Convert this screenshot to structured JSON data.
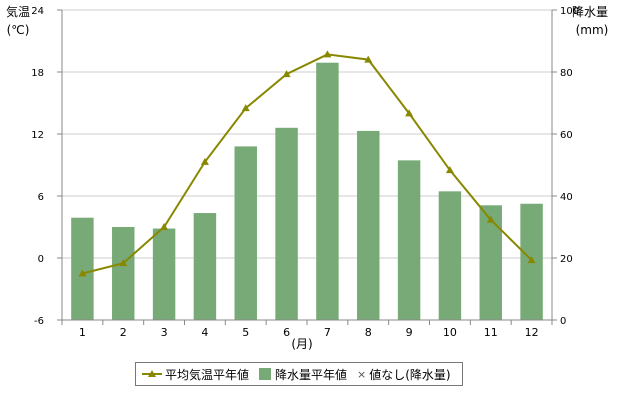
{
  "colors": {
    "temperature": "#888800",
    "precipitation": "#78aa78",
    "grid": "#cccccc",
    "axis": "#888888"
  },
  "axes": {
    "left_label_line1": "気温",
    "left_label_line2": "(℃)",
    "right_label_line1": "降水量",
    "right_label_line2": "(mm)",
    "x_label": "(月)"
  },
  "legend": {
    "temperature": "平均気温平年値",
    "precipitation": "降水量平年値",
    "missing_symbol": "×",
    "missing": "値なし(降水量)"
  },
  "chart_data": {
    "type": "bar",
    "categories": [
      "1",
      "2",
      "3",
      "4",
      "5",
      "6",
      "7",
      "8",
      "9",
      "10",
      "11",
      "12"
    ],
    "series": [
      {
        "name": "平均気温平年値",
        "type": "line",
        "axis": "left",
        "values": [
          -1.5,
          -0.5,
          3.0,
          9.3,
          14.5,
          17.8,
          19.7,
          19.2,
          14.0,
          8.5,
          3.7,
          -0.2
        ]
      },
      {
        "name": "降水量平年値",
        "type": "bar",
        "axis": "right",
        "values": [
          33,
          30,
          29.5,
          34.5,
          56,
          62,
          83,
          61,
          51.5,
          41.5,
          37,
          37.5
        ]
      }
    ],
    "y_left": {
      "ylim": [
        -6,
        24
      ],
      "ticks": [
        -6,
        0,
        6,
        12,
        18,
        24
      ]
    },
    "y_right": {
      "ylim": [
        0,
        100
      ],
      "ticks": [
        0,
        20,
        40,
        60,
        80,
        100
      ]
    },
    "grid": true,
    "legend_position": "bottom"
  }
}
